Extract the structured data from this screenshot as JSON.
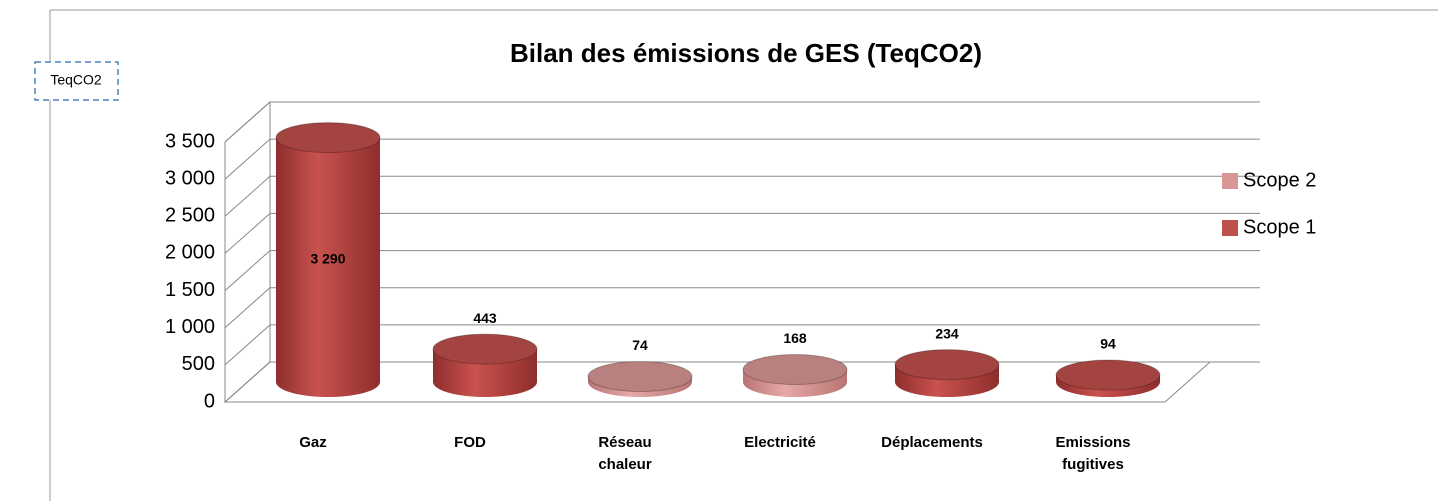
{
  "chart_data": {
    "type": "cylinder-bar",
    "title": "Bilan des émissions de GES (TeqCO2)",
    "y_axis_label": "TeqCO2",
    "categories": [
      "Gaz",
      "FOD",
      "Réseau chaleur",
      "Electricité",
      "Déplacements",
      "Emissions fugitives"
    ],
    "series": [
      {
        "name": "Scope 2",
        "color": "#d99694",
        "values": [
          null,
          null,
          74,
          168,
          null,
          null
        ]
      },
      {
        "name": "Scope 1",
        "color": "#c0504d",
        "values": [
          3290,
          443,
          null,
          null,
          234,
          94
        ],
        "value_labels": [
          "3 290",
          "443",
          null,
          null,
          "234",
          "94"
        ]
      }
    ],
    "ylim": [
      0,
      3500
    ],
    "yticks": [
      0,
      500,
      {
        "value": 1000,
        "label": "1 000"
      },
      {
        "value": 1500,
        "label": "1 500"
      },
      {
        "value": 2000,
        "label": "2 000"
      },
      {
        "value": 2500,
        "label": "2 500"
      },
      {
        "value": 3000,
        "label": "3 000"
      },
      {
        "value": 3500,
        "label": "3 500"
      }
    ],
    "grid": true,
    "legend": "right"
  }
}
